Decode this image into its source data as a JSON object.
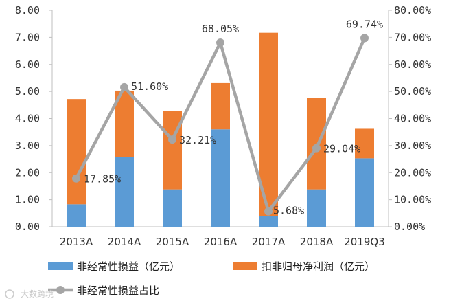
{
  "chart_data": {
    "type": "bar",
    "stacked": true,
    "categories": [
      "2013A",
      "2014A",
      "2015A",
      "2016A",
      "2017A",
      "2018A",
      "2019Q3"
    ],
    "series": [
      {
        "name": "非经常性损益（亿元）",
        "kind": "bar",
        "axis": "left",
        "color": "#5b9bd5",
        "values": [
          0.83,
          2.58,
          1.38,
          3.6,
          0.4,
          1.38,
          2.53
        ]
      },
      {
        "name": "扣非归母净利润（亿元）",
        "kind": "bar",
        "axis": "left",
        "color": "#ed7d31",
        "values": [
          3.89,
          2.45,
          2.9,
          1.71,
          6.77,
          3.37,
          1.09
        ]
      },
      {
        "name": "非经常性损益占比",
        "kind": "line",
        "axis": "right",
        "color": "#a5a5a5",
        "values": [
          17.85,
          51.6,
          32.21,
          68.05,
          5.68,
          29.04,
          69.74
        ],
        "labels": [
          "17.85%",
          "51.60%",
          "32.21%",
          "68.05%",
          "5.68%",
          "29.04%",
          "69.74%"
        ]
      }
    ],
    "y_left": {
      "range": [
        0,
        8
      ],
      "ticks": [
        "0.00",
        "1.00",
        "2.00",
        "3.00",
        "4.00",
        "5.00",
        "6.00",
        "7.00",
        "8.00"
      ]
    },
    "y_right": {
      "range": [
        0,
        80
      ],
      "ticks": [
        "0.00%",
        "10.00%",
        "20.00%",
        "30.00%",
        "40.00%",
        "50.00%",
        "60.00%",
        "70.00%",
        "80.00%"
      ]
    },
    "legend_position": "bottom",
    "grid": false
  },
  "watermark": "大数跨境"
}
